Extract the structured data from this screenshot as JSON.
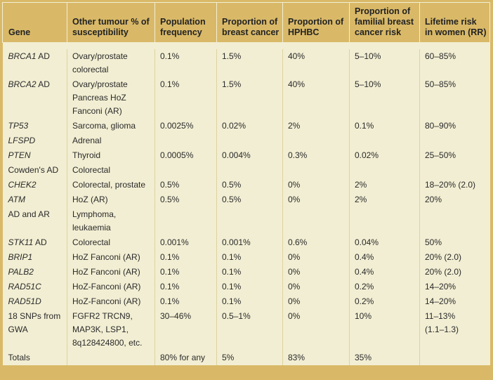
{
  "table": {
    "title_semantic": "Breast cancer susceptibility genes table",
    "colors": {
      "frame_gold": "#d9b968",
      "body_cream": "#f2eed3",
      "separator_khaki": "#ded2a0",
      "text": "#2a2a2a"
    },
    "columns": [
      "Gene",
      "Other tumour % of susceptibility",
      "Population frequency",
      "Proportion of breast cancer",
      "Proportion of HPHBC",
      "Proportion of familial breast cancer risk",
      "Lifetime risk in women (RR)"
    ],
    "rows": [
      {
        "gene_italic": "BRCA1",
        "gene_regular": " AD",
        "values": [
          "Ovary/prostate\ncolorectal",
          "0.1%",
          "1.5%",
          "40%",
          "5–10%",
          "60–85%"
        ]
      },
      {
        "gene_italic": "BRCA2",
        "gene_regular": " AD",
        "values": [
          "Ovary/prostate\nPancreas HoZ\nFanconi (AR)",
          "0.1%",
          "1.5%",
          "40%",
          "5–10%",
          "50–85%"
        ]
      },
      {
        "gene_italic": "TP53",
        "gene_regular": "",
        "values": [
          "Sarcoma, glioma",
          "0.0025%",
          "0.02%",
          "2%",
          "0.1%",
          "80–90%"
        ]
      },
      {
        "gene_italic": "LFSPD",
        "gene_regular": "",
        "values": [
          "Adrenal",
          "",
          "",
          "",
          "",
          ""
        ]
      },
      {
        "gene_italic": "PTEN",
        "gene_regular": "",
        "values": [
          "Thyroid",
          "0.0005%",
          "0.004%",
          "0.3%",
          "0.02%",
          "25–50%"
        ]
      },
      {
        "gene_italic": "",
        "gene_regular": "Cowden's AD",
        "values": [
          "Colorectal",
          "",
          "",
          "",
          "",
          ""
        ]
      },
      {
        "gene_italic": "CHEK2",
        "gene_regular": "",
        "values": [
          "Colorectal, prostate",
          "0.5%",
          "0.5%",
          "0%",
          "2%",
          "18–20% (2.0)"
        ]
      },
      {
        "gene_italic": "ATM",
        "gene_regular": "",
        "values": [
          "HoZ (AR)",
          "0.5%",
          "0.5%",
          "0%",
          "2%",
          "20%"
        ]
      },
      {
        "gene_italic": "",
        "gene_regular": "AD and AR",
        "values": [
          "Lymphoma,\nleukaemia",
          "",
          "",
          "",
          "",
          ""
        ]
      },
      {
        "gene_italic": "STK11",
        "gene_regular": " AD",
        "values": [
          "Colorectal",
          "0.001%",
          "0.001%",
          "0.6%",
          "0.04%",
          "50%"
        ]
      },
      {
        "gene_italic": "BRIP1",
        "gene_regular": "",
        "values": [
          "HoZ Fanconi (AR)",
          "0.1%",
          "0.1%",
          "0%",
          "0.4%",
          "20% (2.0)"
        ]
      },
      {
        "gene_italic": "PALB2",
        "gene_regular": "",
        "values": [
          "HoZ Fanconi (AR)",
          "0.1%",
          "0.1%",
          "0%",
          "0.4%",
          "20% (2.0)"
        ]
      },
      {
        "gene_italic": "RAD51C",
        "gene_regular": "",
        "values": [
          "HoZ-Fanconi (AR)",
          "0.1%",
          "0.1%",
          "0%",
          "0.2%",
          "14–20%"
        ]
      },
      {
        "gene_italic": "RAD51D",
        "gene_regular": "",
        "values": [
          "HoZ-Fanconi (AR)",
          "0.1%",
          "0.1%",
          "0%",
          "0.2%",
          "14–20%"
        ]
      },
      {
        "gene_italic": "",
        "gene_regular": "18 SNPs from\nGWA",
        "values": [
          "FGFR2 TRCN9,\nMAP3K, LSP1,\n8q128424800, etc.",
          "30–46%",
          "0.5–1%",
          "0%",
          "10%",
          "11–13%\n(1.1–1.3)"
        ]
      },
      {
        "gene_italic": "",
        "gene_regular": "Totals",
        "values": [
          "",
          "80% for any",
          "5%",
          "83%",
          "35%",
          ""
        ]
      }
    ]
  }
}
